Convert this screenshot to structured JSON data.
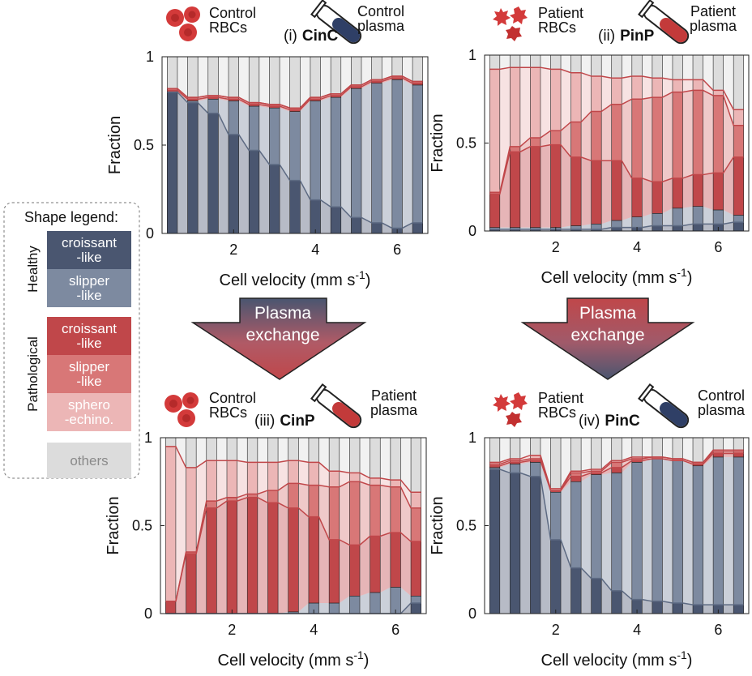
{
  "chart_data": [
    {
      "type": "stacked-bar",
      "header": {
        "rbc": [
          "Control",
          "RBCs"
        ],
        "plasma": [
          "Control",
          "plasma"
        ],
        "panel": "(i)",
        "name": "CinC"
      },
      "ylabel": "Fraction",
      "xlabel": [
        "Cell velocity (mm s",
        "-1",
        ")"
      ],
      "x": [
        0.5,
        1,
        1.5,
        2,
        2.5,
        3,
        3.5,
        4,
        4.5,
        5,
        5.5,
        6,
        6.5
      ],
      "xlim": [
        0.25,
        6.75
      ],
      "ylim": [
        0,
        1
      ],
      "xticks": [
        2,
        4,
        6
      ],
      "yticks": [
        0,
        0.5,
        1
      ],
      "series": [
        {
          "color": "#4a5670",
          "values": [
            0.8,
            0.74,
            0.68,
            0.56,
            0.47,
            0.39,
            0.3,
            0.19,
            0.15,
            0.09,
            0.06,
            0.03,
            0.06
          ]
        },
        {
          "color": "#7d8aa0",
          "values": [
            0,
            0.01,
            0.08,
            0.19,
            0.25,
            0.32,
            0.39,
            0.56,
            0.62,
            0.73,
            0.79,
            0.84,
            0.78
          ]
        },
        {
          "color": "#c0474a",
          "values": [
            0.01,
            0.01,
            0.01,
            0.01,
            0.01,
            0.01,
            0.01,
            0.01,
            0.01,
            0.01,
            0.01,
            0.01,
            0.01
          ]
        },
        {
          "color": "#d87777",
          "values": [
            0.01,
            0.01,
            0.01,
            0.01,
            0.01,
            0.01,
            0.01,
            0.01,
            0.01,
            0.01,
            0.01,
            0.01,
            0.01
          ]
        },
        {
          "color": "#ecb6b6",
          "values": [
            0,
            0,
            0,
            0,
            0,
            0,
            0,
            0,
            0,
            0,
            0,
            0,
            0
          ]
        },
        {
          "color": "#dcdcdc",
          "values": [
            0.18,
            0.23,
            0.22,
            0.23,
            0.26,
            0.27,
            0.29,
            0.23,
            0.21,
            0.16,
            0.13,
            0.11,
            0.14
          ]
        }
      ]
    },
    {
      "type": "stacked-bar",
      "header": {
        "rbc": [
          "Patient",
          "RBCs"
        ],
        "plasma": [
          "Patient",
          "plasma"
        ],
        "panel": "(ii)",
        "name": "PinP"
      },
      "ylabel": "Fraction",
      "xlabel": [
        "Cell velocity (mm s",
        "-1",
        ")"
      ],
      "x": [
        0.5,
        1,
        1.5,
        2,
        2.5,
        3,
        3.5,
        4,
        4.5,
        5,
        5.5,
        6,
        6.5
      ],
      "xlim": [
        0.25,
        6.75
      ],
      "ylim": [
        0,
        1
      ],
      "xticks": [
        2,
        4,
        6
      ],
      "yticks": [
        0,
        0.5,
        1
      ],
      "series": [
        {
          "color": "#4a5670",
          "values": [
            0.01,
            0.01,
            0.01,
            0.01,
            0.01,
            0.01,
            0.02,
            0.02,
            0.03,
            0.03,
            0.04,
            0.04,
            0.05
          ]
        },
        {
          "color": "#7d8aa0",
          "values": [
            0.01,
            0.01,
            0.01,
            0.01,
            0.02,
            0.03,
            0.04,
            0.06,
            0.07,
            0.1,
            0.1,
            0.08,
            0.04
          ]
        },
        {
          "color": "#c0474a",
          "values": [
            0.19,
            0.43,
            0.46,
            0.47,
            0.39,
            0.36,
            0.34,
            0.22,
            0.18,
            0.17,
            0.18,
            0.21,
            0.33
          ]
        },
        {
          "color": "#d87777",
          "values": [
            0.01,
            0.03,
            0.05,
            0.08,
            0.2,
            0.28,
            0.32,
            0.45,
            0.48,
            0.49,
            0.48,
            0.44,
            0.18
          ]
        },
        {
          "color": "#ecb6b6",
          "values": [
            0.7,
            0.45,
            0.4,
            0.35,
            0.28,
            0.2,
            0.15,
            0.13,
            0.11,
            0.07,
            0.06,
            0.03,
            0.09
          ]
        },
        {
          "color": "#dcdcdc",
          "values": [
            0.08,
            0.07,
            0.07,
            0.08,
            0.1,
            0.12,
            0.13,
            0.12,
            0.13,
            0.14,
            0.14,
            0.2,
            0.31
          ]
        }
      ]
    },
    {
      "type": "stacked-bar",
      "header": {
        "rbc": [
          "Control",
          "RBCs"
        ],
        "plasma": [
          "Patient",
          "plasma"
        ],
        "panel": "(iii)",
        "name": "CinP"
      },
      "ylabel": "Fraction",
      "xlabel": [
        "Cell velocity (mm s",
        "-1",
        ")"
      ],
      "x": [
        0.5,
        1,
        1.5,
        2,
        2.5,
        3,
        3.5,
        4,
        4.5,
        5,
        5.5,
        6,
        6.5
      ],
      "xlim": [
        0.25,
        6.75
      ],
      "ylim": [
        0,
        1
      ],
      "xticks": [
        2,
        4,
        6
      ],
      "yticks": [
        0,
        0.5,
        1
      ],
      "series": [
        {
          "color": "#4a5670",
          "values": [
            0,
            0,
            0,
            0,
            0,
            0,
            0,
            0,
            0,
            0,
            0,
            0,
            0.06
          ]
        },
        {
          "color": "#7d8aa0",
          "values": [
            0,
            0,
            0,
            0,
            0,
            0,
            0.01,
            0.06,
            0.06,
            0.1,
            0.12,
            0.15,
            0.04
          ]
        },
        {
          "color": "#c0474a",
          "values": [
            0.07,
            0.34,
            0.6,
            0.64,
            0.66,
            0.63,
            0.59,
            0.49,
            0.36,
            0.29,
            0.32,
            0.31,
            0.31
          ]
        },
        {
          "color": "#d87777",
          "values": [
            0,
            0.01,
            0.04,
            0.02,
            0.02,
            0.07,
            0.14,
            0.18,
            0.3,
            0.36,
            0.29,
            0.26,
            0.19
          ]
        },
        {
          "color": "#ecb6b6",
          "values": [
            0.88,
            0.48,
            0.23,
            0.21,
            0.18,
            0.16,
            0.13,
            0.13,
            0.09,
            0.05,
            0.04,
            0.04,
            0.09
          ]
        },
        {
          "color": "#dcdcdc",
          "values": [
            0.05,
            0.17,
            0.13,
            0.13,
            0.14,
            0.14,
            0.13,
            0.14,
            0.19,
            0.2,
            0.23,
            0.24,
            0.31
          ]
        }
      ]
    },
    {
      "type": "stacked-bar",
      "header": {
        "rbc": [
          "Patient",
          "RBCs"
        ],
        "plasma": [
          "Control",
          "plasma"
        ],
        "panel": "(iv)",
        "name": "PinC"
      },
      "ylabel": "Fraction",
      "xlabel": [
        "Cell velocity (mm s",
        "-1",
        ")"
      ],
      "x": [
        0.5,
        1,
        1.5,
        2,
        2.5,
        3,
        3.5,
        4,
        4.5,
        5,
        5.5,
        6,
        6.5
      ],
      "xlim": [
        0.25,
        6.75
      ],
      "ylim": [
        0,
        1
      ],
      "xticks": [
        2,
        4,
        6
      ],
      "yticks": [
        0,
        0.5,
        1
      ],
      "series": [
        {
          "color": "#4a5670",
          "values": [
            0.82,
            0.8,
            0.78,
            0.42,
            0.26,
            0.2,
            0.13,
            0.08,
            0.07,
            0.06,
            0.05,
            0.05,
            0.05
          ]
        },
        {
          "color": "#7d8aa0",
          "values": [
            0.01,
            0.05,
            0.08,
            0.27,
            0.49,
            0.59,
            0.67,
            0.78,
            0.81,
            0.81,
            0.79,
            0.84,
            0.84
          ]
        },
        {
          "color": "#c0474a",
          "values": [
            0.01,
            0.01,
            0.01,
            0.01,
            0.03,
            0.01,
            0.03,
            0.01,
            0,
            0,
            0.01,
            0.02,
            0.02
          ]
        },
        {
          "color": "#d87777",
          "values": [
            0.01,
            0.01,
            0.01,
            0,
            0.02,
            0.01,
            0.03,
            0.01,
            0.01,
            0.01,
            0.01,
            0.01,
            0.01
          ]
        },
        {
          "color": "#ecb6b6",
          "values": [
            0.01,
            0.01,
            0.02,
            0.01,
            0.01,
            0.01,
            0.01,
            0.01,
            0,
            0,
            0,
            0.01,
            0.01
          ]
        },
        {
          "color": "#dcdcdc",
          "values": [
            0.14,
            0.12,
            0.1,
            0.29,
            0.19,
            0.18,
            0.13,
            0.11,
            0.11,
            0.12,
            0.14,
            0.07,
            0.07
          ]
        }
      ]
    }
  ],
  "shape_legend": {
    "title": "Shape legend:",
    "groups": [
      {
        "label": "Healthy",
        "items": [
          [
            "croissant",
            "-like"
          ],
          [
            "slipper",
            "-like"
          ]
        ]
      },
      {
        "label": "Pathological",
        "items": [
          [
            "croissant",
            "-like"
          ],
          [
            "slipper",
            "-like"
          ],
          [
            "sphero",
            "-echino."
          ]
        ]
      }
    ],
    "others": "others"
  },
  "arrows": [
    [
      "Plasma",
      "exchange"
    ],
    [
      "Plasma",
      "exchange"
    ]
  ]
}
